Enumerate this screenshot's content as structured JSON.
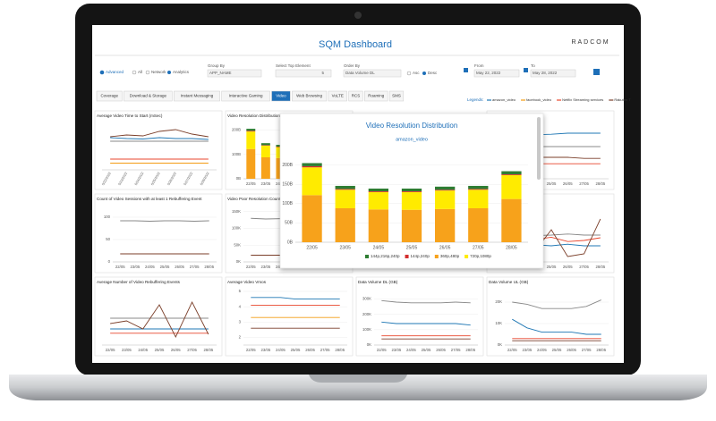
{
  "header": {
    "title": "SQM Dashboard",
    "logo": "RADCOM"
  },
  "filters": {
    "advanced": "Advanced",
    "all": "All",
    "network": "Network",
    "analytics": "Analytics",
    "group_by_label": "Group By",
    "group_by": "APP_NAME",
    "top_label": "Select Top Element",
    "top": 5,
    "order_label": "Order By",
    "order": "Data Volume DL",
    "asc": "Asc",
    "desc": "Desc",
    "from_label": "From",
    "from": "May 22, 2022",
    "to_label": "To",
    "to": "May 28, 2022"
  },
  "tabs": [
    "Coverage",
    "Download & Storage",
    "Instant Messaging",
    "Interactive Gaming",
    "Video",
    "Web Browsing",
    "VoLTE",
    "RCS",
    "Roaming",
    "SMS"
  ],
  "active_tab": "Video",
  "legend": {
    "label": "Legends:",
    "items": [
      {
        "name": "amazon_video",
        "color": "#1f77b4"
      },
      {
        "name": "facebook_video",
        "color": "#f39c12"
      },
      {
        "name": "Netflix Streaming services",
        "color": "#e8452c"
      },
      {
        "name": "Rakuten T",
        "color": "#7b3f2a"
      }
    ]
  },
  "chart_data": [
    {
      "type": "bar",
      "title": "Video Resolution Distribution",
      "subtitle": "amazon_video",
      "categories": [
        "22/05",
        "23/05",
        "24/05",
        "25/05",
        "26/05",
        "27/05",
        "28/05"
      ],
      "series": [
        {
          "name": "144p,216p,240p",
          "color": "#2e7d32",
          "values": [
            8,
            8,
            7,
            7,
            8,
            8,
            8
          ]
        },
        {
          "name": "144p,240p",
          "color": "#d32f2f",
          "values": [
            3,
            2,
            2,
            2,
            2,
            2,
            2
          ]
        },
        {
          "name": "360p,480p",
          "color": "#f7a21b",
          "values": [
            122,
            88,
            85,
            84,
            86,
            88,
            112
          ]
        },
        {
          "name": "720p,1080p",
          "color": "#ffeb00",
          "values": [
            72,
            48,
            45,
            46,
            48,
            48,
            62
          ]
        }
      ],
      "ylim": [
        0,
        220
      ],
      "yticks": [
        {
          "value": 0,
          "label": "0B"
        },
        {
          "value": 50,
          "label": "50B"
        },
        {
          "value": 100,
          "label": "100B"
        },
        {
          "value": 150,
          "label": "150B"
        },
        {
          "value": 200,
          "label": "200B"
        }
      ],
      "grid": true
    },
    {
      "type": "line",
      "title": "Average Video Time to Start (mSec)",
      "categories": [
        "5/22/2022",
        "5/23/2022",
        "5/24/2022",
        "5/25/2022",
        "5/26/2022",
        "5/27/2022",
        "5/28/2022"
      ],
      "series": [
        {
          "color": "#7b3f2a",
          "values": [
            74,
            78,
            76,
            86,
            90,
            80,
            74
          ]
        },
        {
          "color": "#1f77b4",
          "values": [
            72,
            70,
            69,
            72,
            70,
            70,
            68
          ]
        },
        {
          "color": "#888888",
          "values": [
            64,
            64,
            64,
            64,
            64,
            64,
            64
          ]
        },
        {
          "color": "#e8452c",
          "values": [
            24,
            24,
            24,
            24,
            24,
            24,
            24
          ]
        },
        {
          "color": "#f39c12",
          "values": [
            15,
            15,
            15,
            15,
            15,
            15,
            15
          ]
        }
      ],
      "ylim": [
        0,
        100
      ]
    },
    {
      "type": "bar",
      "title": "Video Resolution Distribution",
      "categories": [
        "22/05",
        "23/05",
        "24/05",
        "25/05",
        "26/05",
        "27/05",
        "28/05"
      ],
      "series": [
        {
          "color": "#2e7d32",
          "values": [
            8,
            8,
            7,
            7,
            8,
            8,
            8
          ]
        },
        {
          "color": "#d32f2f",
          "values": [
            3,
            2,
            2,
            2,
            2,
            2,
            2
          ]
        },
        {
          "color": "#f7a21b",
          "values": [
            122,
            88,
            85,
            84,
            86,
            88,
            112
          ]
        },
        {
          "color": "#ffeb00",
          "values": [
            72,
            48,
            45,
            46,
            48,
            48,
            62
          ]
        }
      ],
      "ylim": [
        0,
        220
      ],
      "yticks": [
        {
          "value": 0,
          "label": "0B"
        },
        {
          "value": 100,
          "label": "100B"
        },
        {
          "value": 200,
          "label": "200B"
        }
      ]
    },
    {
      "type": "line",
      "categories": [
        "22/05",
        "23/05",
        "24/05",
        "25/05",
        "26/05",
        "27/05",
        "28/05"
      ],
      "series": [
        {
          "color": "#1f77b4",
          "values": [
            80,
            82,
            82,
            83,
            85,
            85,
            85
          ]
        },
        {
          "color": "#888888",
          "values": [
            60,
            60,
            60,
            60,
            60,
            60,
            60
          ]
        },
        {
          "color": "#7b3f2a",
          "values": [
            40,
            40,
            40,
            40,
            40,
            38,
            38
          ]
        },
        {
          "color": "#e8452c",
          "values": [
            28,
            28,
            28,
            28,
            28,
            28,
            28
          ]
        }
      ],
      "ylim": [
        0,
        100
      ]
    },
    {
      "type": "line",
      "title": "Count of Video Sessions with at least 1 Rebuffering Event",
      "categories": [
        "22/05",
        "23/05",
        "24/05",
        "25/05",
        "26/05",
        "27/05",
        "28/05"
      ],
      "series": [
        {
          "color": "#888888",
          "values": [
            92,
            92,
            91,
            92,
            92,
            91,
            92
          ]
        },
        {
          "color": "#7b3f2a",
          "values": [
            18,
            18,
            18,
            18,
            18,
            18,
            18
          ]
        }
      ],
      "ylim": [
        0,
        120
      ],
      "yticks": [
        0,
        50,
        100
      ]
    },
    {
      "type": "line",
      "title": "Video Poor Resolution Count",
      "categories": [
        "22/05",
        "23/05",
        "24/05",
        "25/05",
        "26/05",
        "27/05",
        "28/05"
      ],
      "series": [
        {
          "color": "#888888",
          "values": [
            130000,
            128000,
            129000,
            130000,
            129000,
            130000,
            129000
          ]
        },
        {
          "color": "#7b3f2a",
          "values": [
            20000,
            20000,
            20000,
            20000,
            20000,
            20000,
            20000
          ]
        }
      ],
      "ylim": [
        0,
        160000
      ],
      "yticks": [
        {
          "value": 0,
          "label": "0K"
        },
        {
          "value": 50000,
          "label": "50K"
        },
        {
          "value": 100000,
          "label": "100K"
        },
        {
          "value": 150000,
          "label": "150K"
        }
      ]
    },
    {
      "type": "line",
      "categories": [
        "22/05",
        "23/05",
        "24/05",
        "25/05",
        "26/05",
        "27/05",
        "28/05"
      ],
      "series": [
        {
          "color": "#888888",
          "values": [
            48,
            50,
            49,
            50,
            52,
            50,
            50
          ]
        },
        {
          "color": "#e8452c",
          "values": [
            40,
            45,
            42,
            46,
            38,
            40,
            45
          ]
        },
        {
          "color": "#1f77b4",
          "values": [
            35,
            30,
            32,
            30,
            33,
            30,
            30
          ]
        },
        {
          "color": "#7b3f2a",
          "values": [
            30,
            40,
            20,
            60,
            10,
            15,
            80
          ]
        }
      ],
      "ylim": [
        0,
        100
      ]
    },
    {
      "type": "line",
      "title": "Average Number of Video Rebuffering Events",
      "categories": [
        "22/05",
        "23/05",
        "24/05",
        "25/05",
        "26/05",
        "27/05",
        "28/05"
      ],
      "series": [
        {
          "color": "#888888",
          "values": [
            50,
            50,
            50,
            50,
            50,
            50,
            50
          ]
        },
        {
          "color": "#1f77b4",
          "values": [
            30,
            30,
            30,
            30,
            30,
            30,
            30
          ]
        },
        {
          "color": "#e8452c",
          "values": [
            22,
            22,
            22,
            22,
            22,
            22,
            22
          ]
        },
        {
          "color": "#7b3f2a",
          "values": [
            40,
            45,
            30,
            75,
            15,
            80,
            20
          ]
        }
      ],
      "ylim": [
        0,
        100
      ]
    },
    {
      "type": "line",
      "title": "Average Video Vmos",
      "categories": [
        "22/05",
        "23/05",
        "24/05",
        "25/05",
        "26/05",
        "27/05",
        "28/05"
      ],
      "series": [
        {
          "color": "#1f77b4",
          "values": [
            4.6,
            4.6,
            4.6,
            4.5,
            4.5,
            4.5,
            4.5
          ]
        },
        {
          "color": "#e8452c",
          "values": [
            4.1,
            4.1,
            4.1,
            4.1,
            4.1,
            4.1,
            4.1
          ]
        },
        {
          "color": "#f39c12",
          "values": [
            3.3,
            3.3,
            3.3,
            3.3,
            3.3,
            3.3,
            3.3
          ]
        },
        {
          "color": "#7b3f2a",
          "values": [
            2.6,
            2.6,
            2.6,
            2.6,
            2.6,
            2.6,
            2.6
          ]
        }
      ],
      "ylim": [
        1.5,
        5
      ],
      "yticks": [
        2,
        3,
        4,
        5
      ]
    },
    {
      "type": "line",
      "title": "Data Volume DL (GB)",
      "categories": [
        "22/05",
        "23/05",
        "24/05",
        "25/05",
        "26/05",
        "27/05",
        "28/05"
      ],
      "series": [
        {
          "color": "#888888",
          "values": [
            290000,
            280000,
            275000,
            275000,
            275000,
            280000,
            275000
          ]
        },
        {
          "color": "#1f77b4",
          "values": [
            150000,
            140000,
            140000,
            140000,
            140000,
            140000,
            130000
          ]
        },
        {
          "color": "#e8452c",
          "values": [
            60000,
            60000,
            60000,
            60000,
            60000,
            60000,
            60000
          ]
        },
        {
          "color": "#7b3f2a",
          "values": [
            40000,
            40000,
            40000,
            40000,
            40000,
            40000,
            40000
          ]
        }
      ],
      "ylim": [
        0,
        350000
      ],
      "yticks": [
        {
          "value": 0,
          "label": "0K"
        },
        {
          "value": 100000,
          "label": "100K"
        },
        {
          "value": 200000,
          "label": "200K"
        },
        {
          "value": 300000,
          "label": "300K"
        }
      ]
    },
    {
      "type": "line",
      "title": "Data Volume UL (GB)",
      "categories": [
        "22/05",
        "23/05",
        "24/05",
        "25/05",
        "26/05",
        "27/05",
        "28/05"
      ],
      "series": [
        {
          "color": "#888888",
          "values": [
            20000,
            19000,
            17000,
            17000,
            17000,
            18000,
            21000
          ]
        },
        {
          "color": "#1f77b4",
          "values": [
            12000,
            8000,
            6000,
            6000,
            6000,
            5000,
            5000
          ]
        },
        {
          "color": "#e8452c",
          "values": [
            3000,
            3000,
            3000,
            3000,
            3000,
            3000,
            3000
          ]
        },
        {
          "color": "#7b3f2a",
          "values": [
            2000,
            2000,
            2000,
            2000,
            2000,
            2000,
            2000
          ]
        }
      ],
      "ylim": [
        0,
        25000
      ],
      "yticks": [
        {
          "value": 0,
          "label": "0K"
        },
        {
          "value": 10000,
          "label": "10K"
        },
        {
          "value": 20000,
          "label": "20K"
        }
      ]
    }
  ]
}
